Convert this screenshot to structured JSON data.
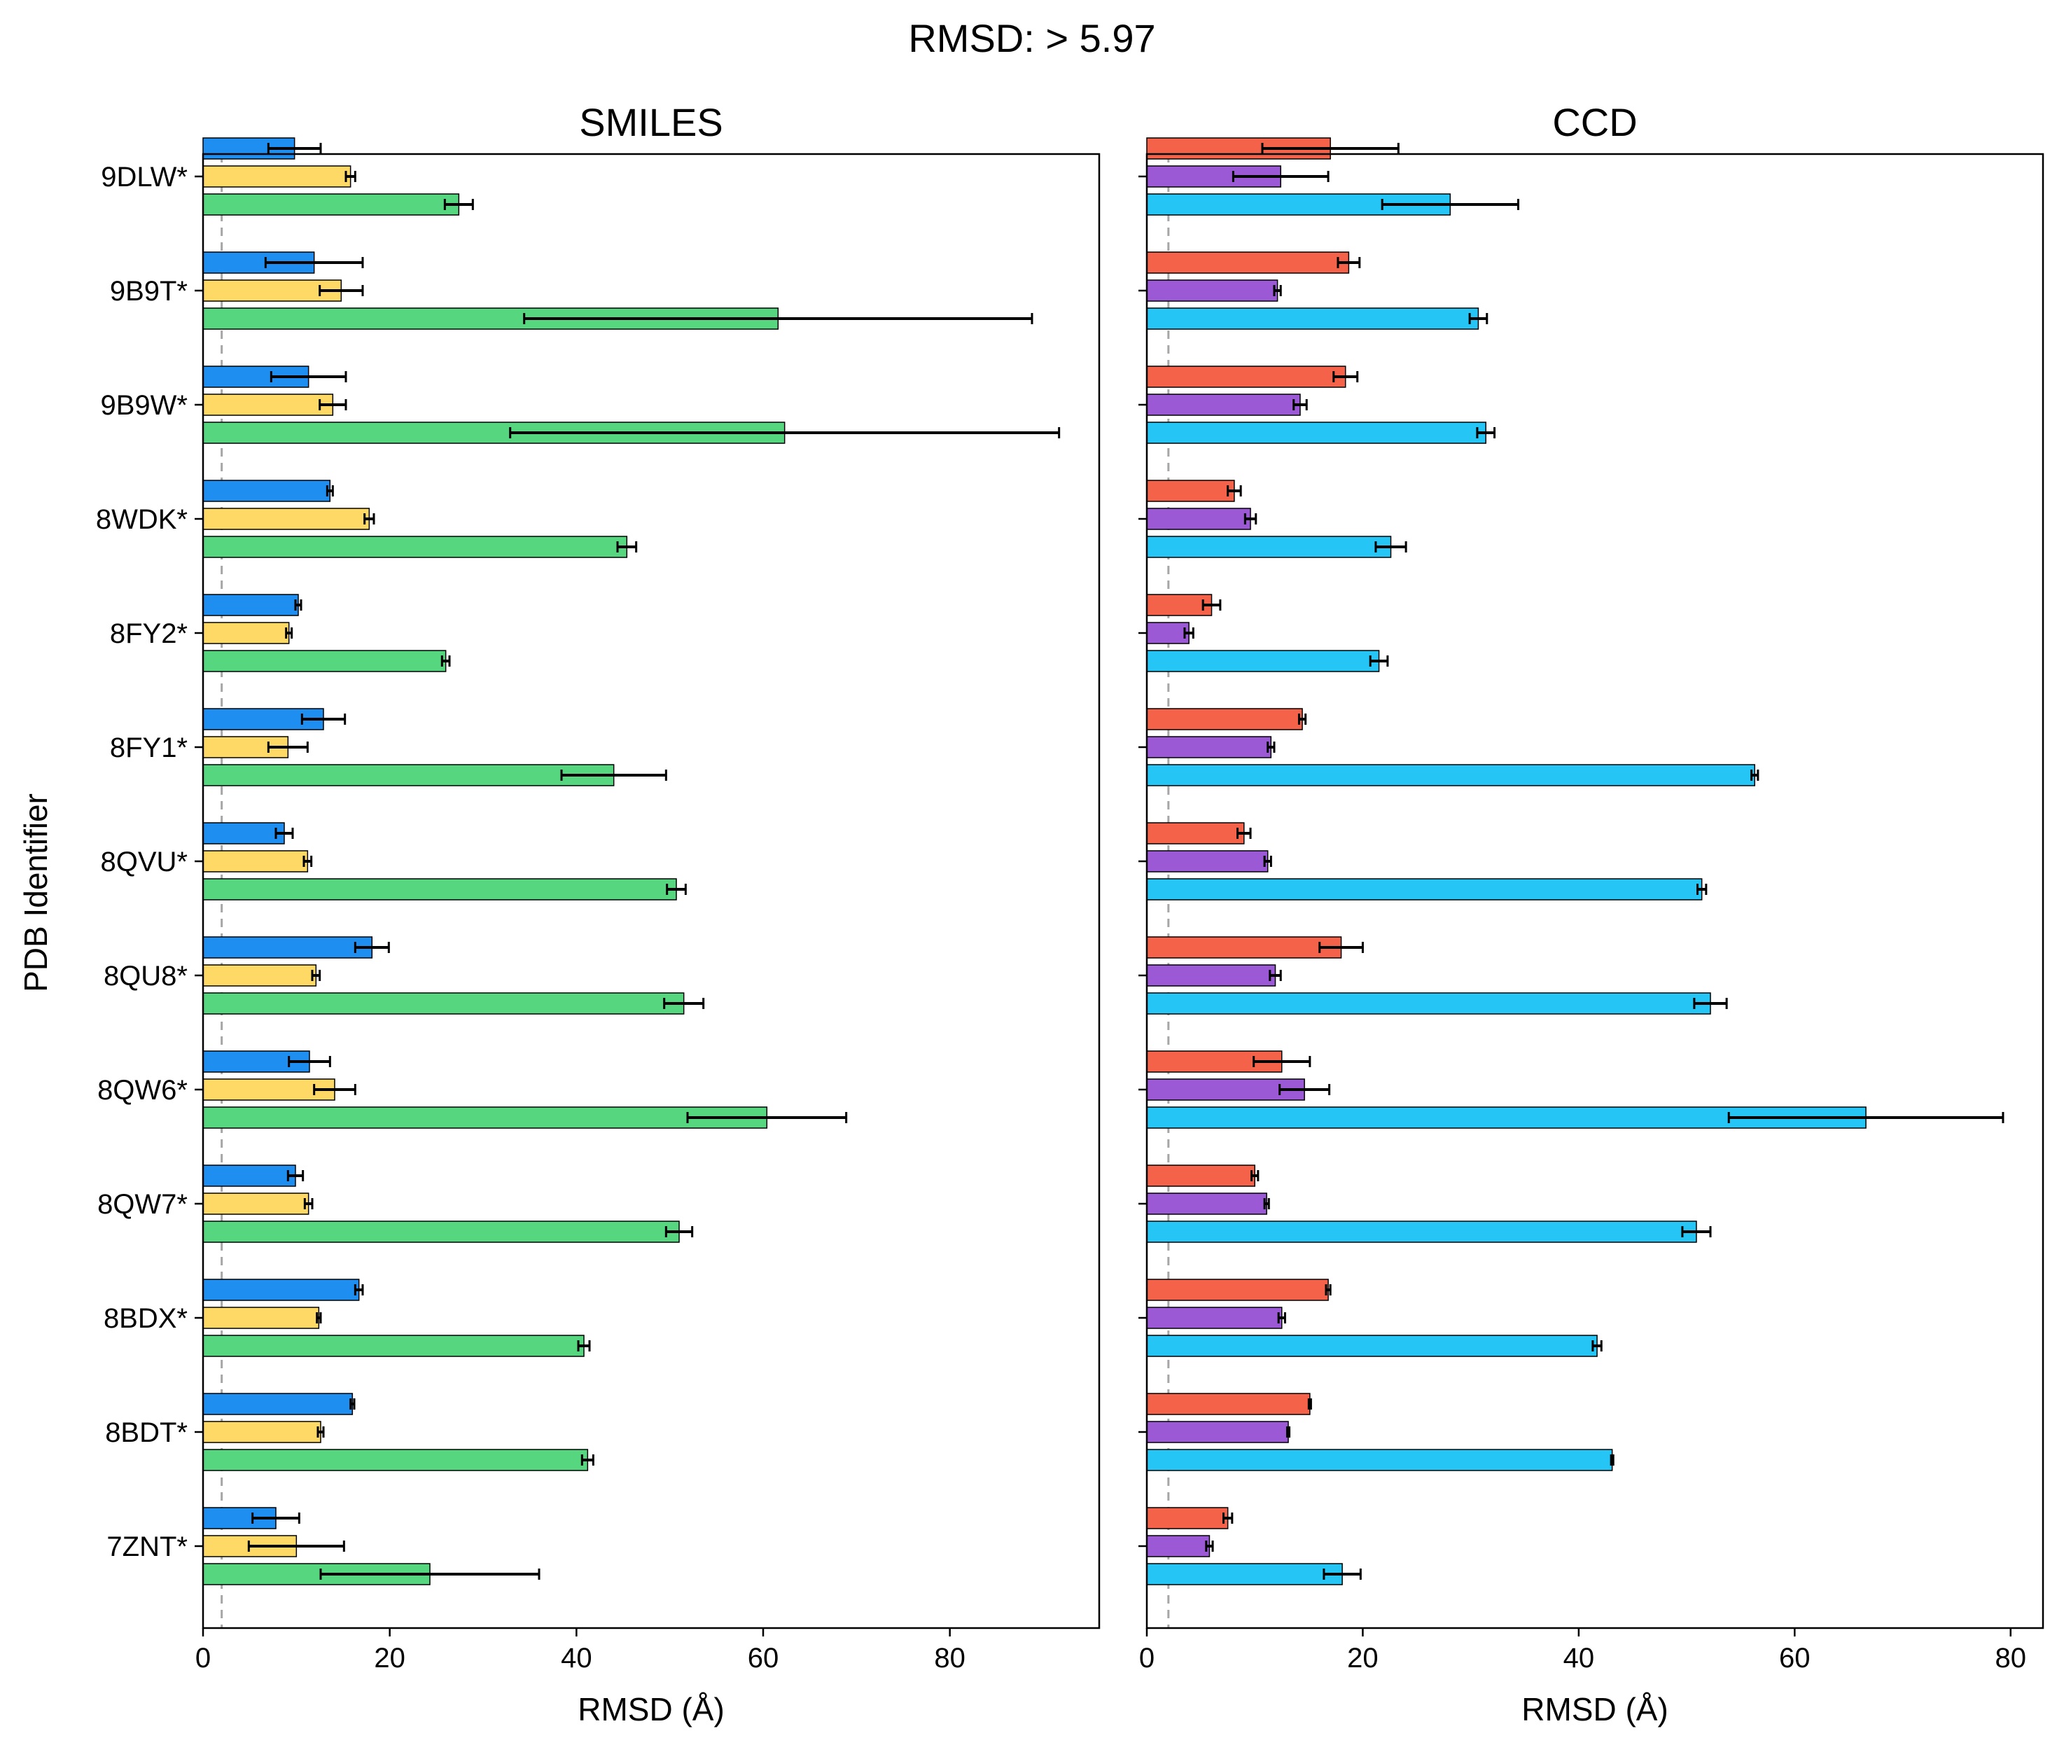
{
  "suptitle": "RMSD: > 5.97",
  "ylabel": "PDB Identifier",
  "colors": {
    "smiles_1": "#1f8ef1",
    "smiles_2": "#ffd966",
    "smiles_3": "#55d67f",
    "ccd_1": "#f4624a",
    "ccd_2": "#9b59d6",
    "ccd_3": "#25c6f5",
    "edge": "#000000",
    "threshold": "#a6a6a6"
  },
  "chart_data": [
    {
      "type": "bar",
      "orientation": "horizontal",
      "title": "SMILES",
      "xlabel": "RMSD (Å)",
      "ylabel": "PDB Identifier",
      "xlim": [
        0,
        96
      ],
      "xticks": [
        0,
        20,
        40,
        60,
        80
      ],
      "threshold": 2,
      "categories": [
        "9DLW*",
        "9B9T*",
        "9B9W*",
        "8WDK*",
        "8FY2*",
        "8FY1*",
        "8QVU*",
        "8QU8*",
        "8QW6*",
        "8QW7*",
        "8BDX*",
        "8BDT*",
        "7ZNT*"
      ],
      "series": [
        {
          "values": [
            9.8,
            11.9,
            11.3,
            13.6,
            10.2,
            12.9,
            8.7,
            18.1,
            11.4,
            9.9,
            16.7,
            16.0,
            7.8
          ],
          "errors": [
            2.8,
            5.2,
            4.0,
            0.3,
            0.3,
            2.3,
            0.9,
            1.8,
            2.2,
            0.8,
            0.4,
            0.2,
            2.5
          ]
        },
        {
          "values": [
            15.8,
            14.8,
            13.9,
            17.8,
            9.2,
            9.1,
            11.2,
            12.1,
            14.1,
            11.3,
            12.4,
            12.6,
            10.0
          ],
          "errors": [
            0.5,
            2.3,
            1.4,
            0.5,
            0.3,
            2.1,
            0.4,
            0.4,
            2.2,
            0.4,
            0.2,
            0.3,
            5.1
          ]
        },
        {
          "values": [
            27.4,
            61.6,
            62.3,
            45.4,
            26.0,
            44.0,
            50.7,
            51.5,
            60.4,
            51.0,
            40.8,
            41.2,
            24.3
          ],
          "errors": [
            1.5,
            27.2,
            29.4,
            1.0,
            0.4,
            5.6,
            1.0,
            2.1,
            8.5,
            1.4,
            0.6,
            0.6,
            11.7
          ]
        }
      ]
    },
    {
      "type": "bar",
      "orientation": "horizontal",
      "title": "CCD",
      "xlabel": "RMSD (Å)",
      "xlim": [
        0,
        83
      ],
      "xticks": [
        0,
        20,
        40,
        60,
        80
      ],
      "threshold": 2,
      "categories": [
        "9DLW*",
        "9B9T*",
        "9B9W*",
        "8WDK*",
        "8FY2*",
        "8FY1*",
        "8QVU*",
        "8QU8*",
        "8QW6*",
        "8QW7*",
        "8BDX*",
        "8BDT*",
        "7ZNT*"
      ],
      "series": [
        {
          "values": [
            17.0,
            18.7,
            18.4,
            8.1,
            6.0,
            14.4,
            9.0,
            18.0,
            12.5,
            10.0,
            16.8,
            15.1,
            7.5
          ],
          "errors": [
            6.3,
            1.0,
            1.1,
            0.6,
            0.8,
            0.3,
            0.6,
            2.0,
            2.6,
            0.3,
            0.2,
            0.1,
            0.4
          ]
        },
        {
          "values": [
            12.4,
            12.1,
            14.2,
            9.6,
            3.9,
            11.5,
            11.2,
            11.9,
            14.6,
            11.1,
            12.5,
            13.1,
            5.8
          ],
          "errors": [
            4.4,
            0.3,
            0.6,
            0.5,
            0.4,
            0.3,
            0.3,
            0.5,
            2.3,
            0.2,
            0.3,
            0.1,
            0.3
          ]
        },
        {
          "values": [
            28.1,
            30.7,
            31.4,
            22.6,
            21.5,
            56.3,
            51.4,
            52.2,
            66.6,
            50.9,
            41.7,
            43.1,
            18.1
          ],
          "errors": [
            6.3,
            0.8,
            0.8,
            1.4,
            0.8,
            0.3,
            0.4,
            1.5,
            12.7,
            1.3,
            0.4,
            0.1,
            1.7
          ]
        }
      ]
    }
  ]
}
